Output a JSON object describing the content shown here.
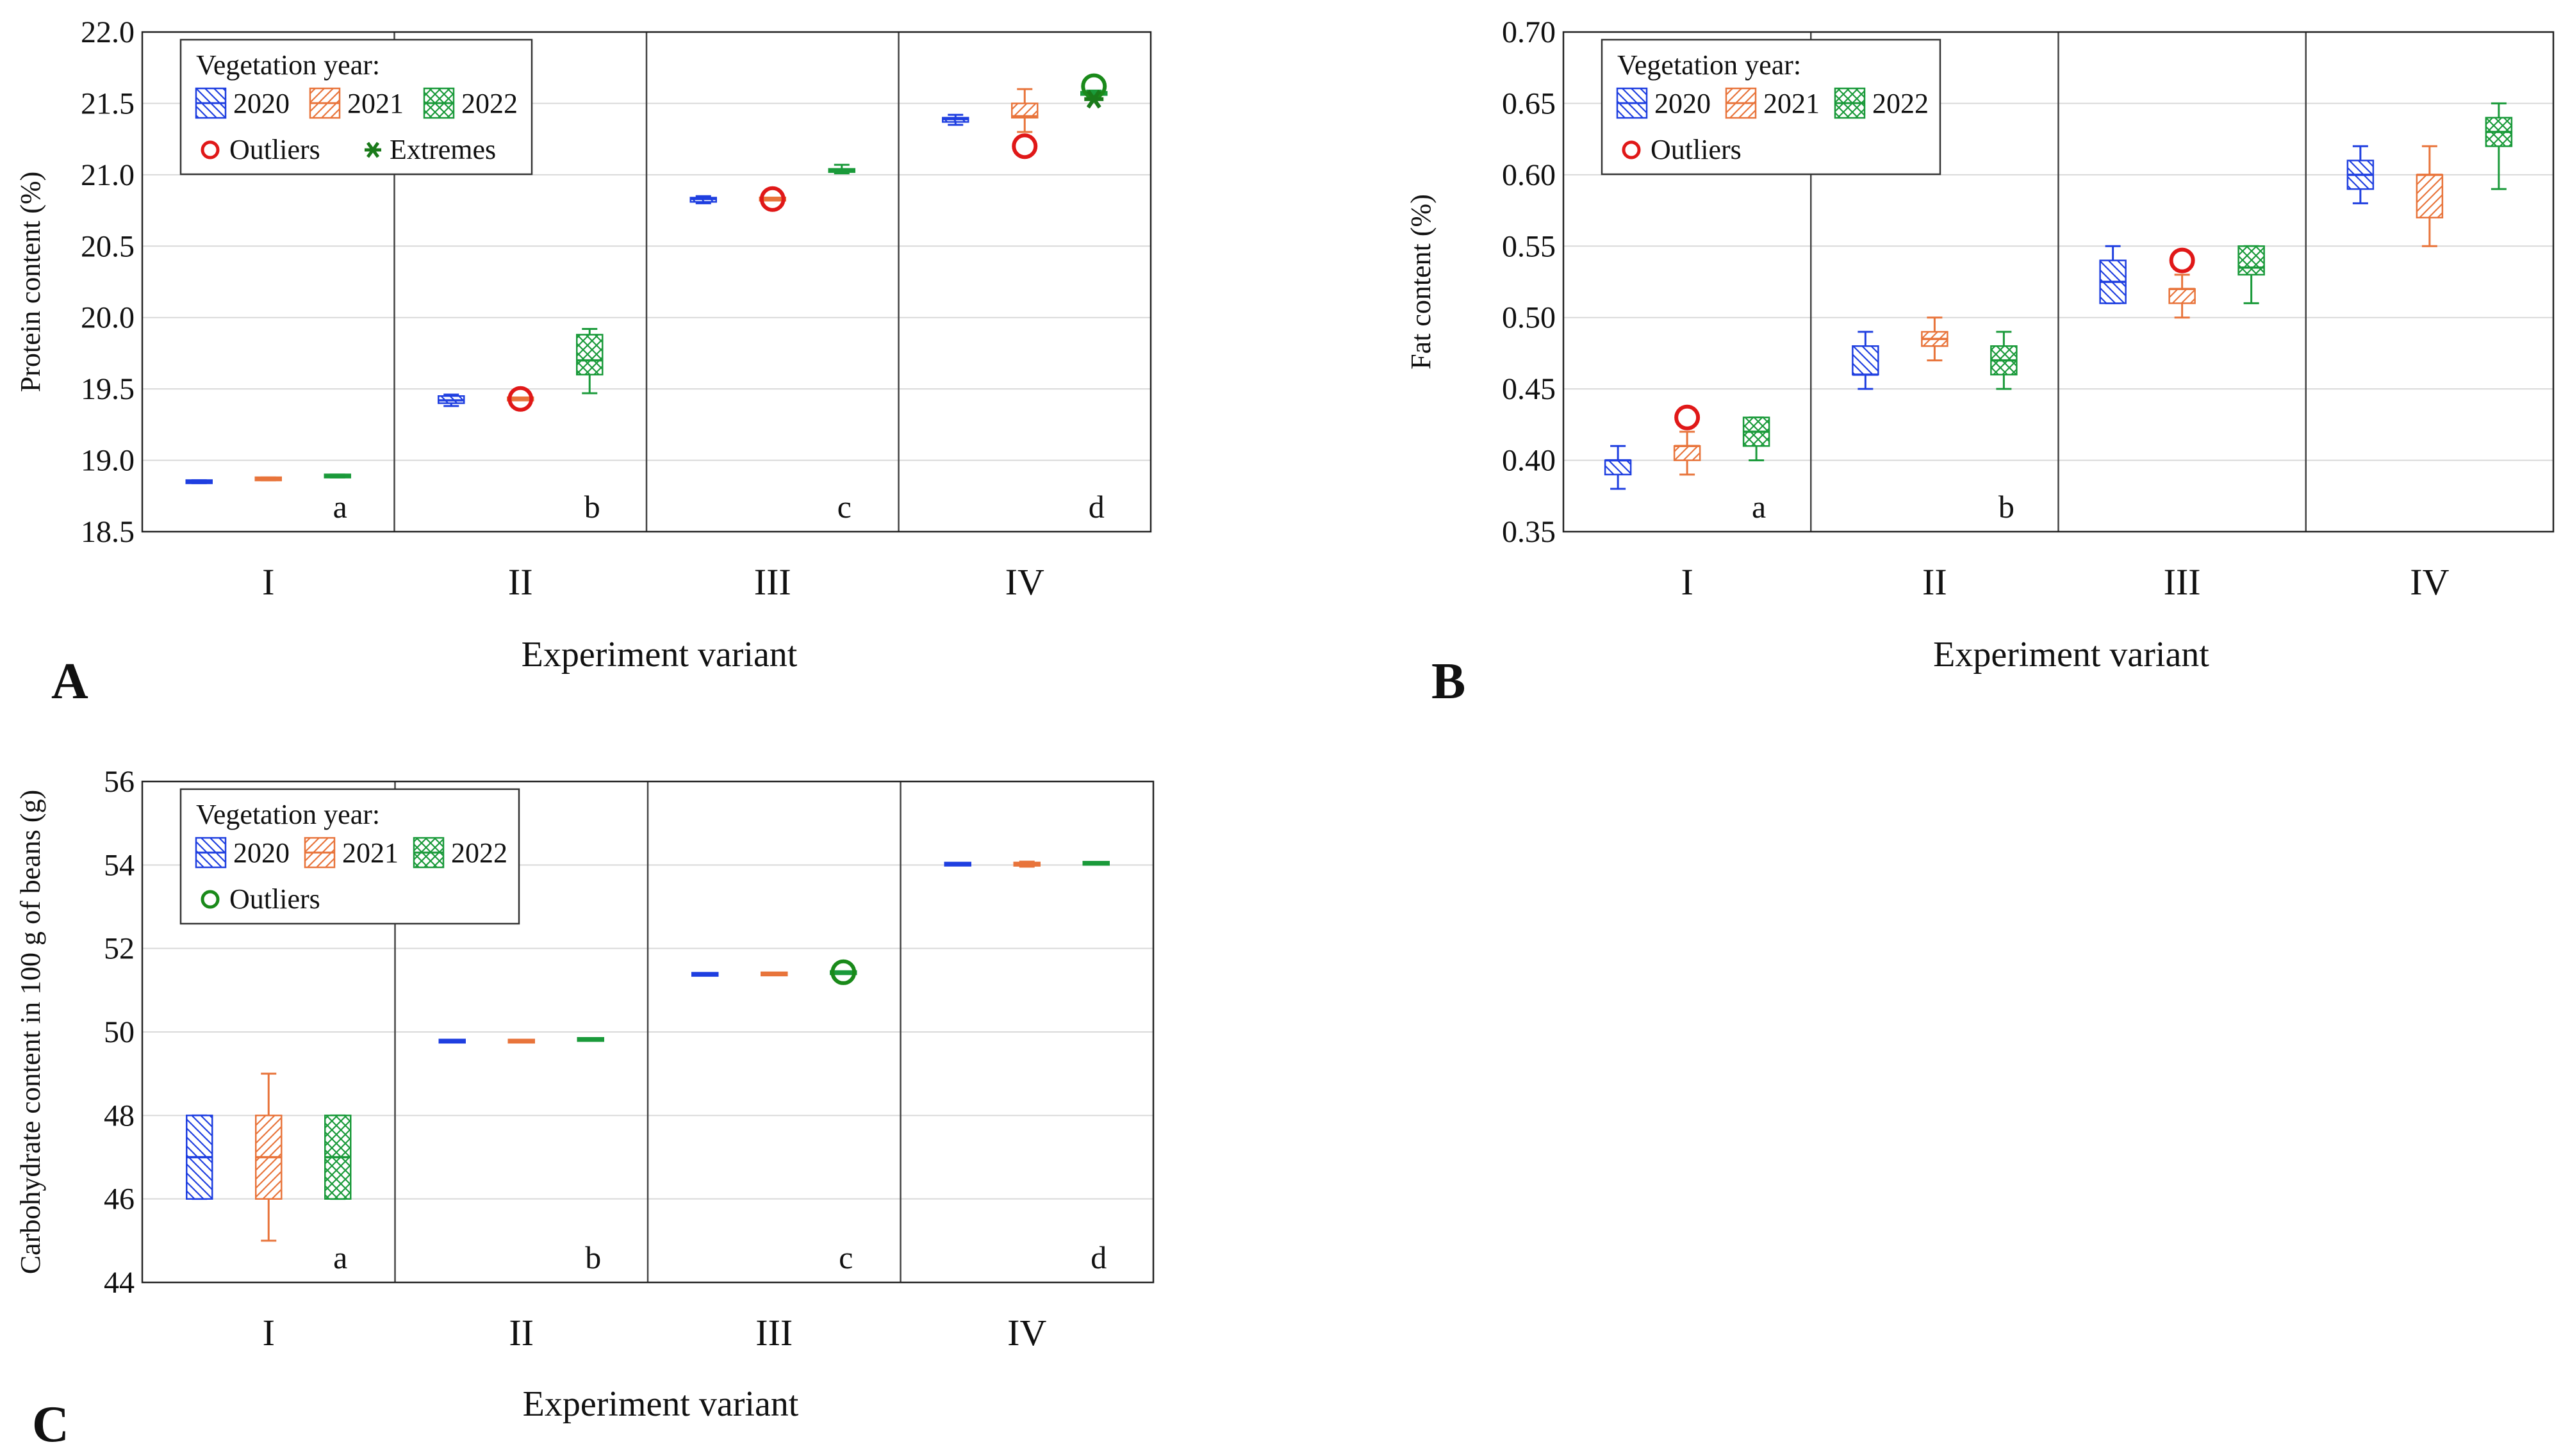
{
  "colors": {
    "2020": "#1f3fe0",
    "2021": "#e8743b",
    "2022": "#1a9a3a",
    "outlier": "#e01818",
    "outlier_2022": "#1a8a1a",
    "extreme": "#1a7a1a"
  },
  "chart_data": [
    {
      "panel": "A",
      "type": "box",
      "ylabel": "Protein content (%)",
      "xlabel": "Experiment variant",
      "ylim": [
        18.5,
        22.0
      ],
      "yticks": [
        "18.5",
        "19.0",
        "19.5",
        "20.0",
        "20.5",
        "21.0",
        "21.5",
        "22.0"
      ],
      "categories": [
        "I",
        "II",
        "III",
        "IV"
      ],
      "significance": [
        "a",
        "b",
        "c",
        "d"
      ],
      "legend": {
        "title": "Vegetation year:",
        "years": [
          "2020",
          "2021",
          "2022"
        ],
        "outliers_label": "Outliers",
        "extremes_label": "Extremes"
      },
      "series": [
        {
          "name": "2020",
          "boxes": [
            {
              "min": 18.84,
              "q1": 18.845,
              "median": 18.85,
              "q3": 18.855,
              "max": 18.86
            },
            {
              "min": 19.38,
              "q1": 19.4,
              "median": 19.42,
              "q3": 19.45,
              "max": 19.46
            },
            {
              "min": 20.8,
              "q1": 20.81,
              "median": 20.83,
              "q3": 20.84,
              "max": 20.85
            },
            {
              "min": 21.35,
              "q1": 21.37,
              "median": 21.39,
              "q3": 21.4,
              "max": 21.42
            }
          ]
        },
        {
          "name": "2021",
          "boxes": [
            {
              "min": 18.86,
              "q1": 18.865,
              "median": 18.87,
              "q3": 18.875,
              "max": 18.88
            },
            {
              "min": 19.42,
              "q1": 19.425,
              "median": 19.43,
              "q3": 19.435,
              "max": 19.44,
              "outliers": [
                19.43
              ]
            },
            {
              "min": 20.82,
              "q1": 20.825,
              "median": 20.83,
              "q3": 20.835,
              "max": 20.84,
              "outliers": [
                20.83
              ]
            },
            {
              "min": 21.3,
              "q1": 21.4,
              "median": 21.41,
              "q3": 21.5,
              "max": 21.6,
              "outliers": [
                21.2
              ]
            }
          ]
        },
        {
          "name": "2022",
          "boxes": [
            {
              "min": 18.88,
              "q1": 18.885,
              "median": 18.89,
              "q3": 18.895,
              "max": 18.9
            },
            {
              "min": 19.47,
              "q1": 19.6,
              "median": 19.7,
              "q3": 19.88,
              "max": 19.92
            },
            {
              "min": 21.01,
              "q1": 21.02,
              "median": 21.03,
              "q3": 21.04,
              "max": 21.07
            },
            {
              "min": 21.55,
              "q1": 21.56,
              "median": 21.57,
              "q3": 21.58,
              "max": 21.59,
              "outliers": [
                21.62
              ],
              "extremes": [
                21.53
              ]
            }
          ]
        }
      ]
    },
    {
      "panel": "B",
      "type": "box",
      "ylabel": "Fat content (%)",
      "xlabel": "Experiment variant",
      "ylim": [
        0.35,
        0.7
      ],
      "yticks": [
        "0.35",
        "0.40",
        "0.45",
        "0.50",
        "0.55",
        "0.60",
        "0.65",
        "0.70"
      ],
      "categories": [
        "I",
        "II",
        "III",
        "IV"
      ],
      "significance": [
        "a",
        "b",
        "",
        ""
      ],
      "legend": {
        "title": "Vegetation year:",
        "years": [
          "2020",
          "2021",
          "2022"
        ],
        "outliers_label": "Outliers"
      },
      "series": [
        {
          "name": "2020",
          "boxes": [
            {
              "min": 0.38,
              "q1": 0.39,
              "median": 0.4,
              "q3": 0.4,
              "max": 0.41
            },
            {
              "min": 0.45,
              "q1": 0.46,
              "median": 0.46,
              "q3": 0.48,
              "max": 0.49
            },
            {
              "min": 0.51,
              "q1": 0.51,
              "median": 0.525,
              "q3": 0.54,
              "max": 0.55
            },
            {
              "min": 0.58,
              "q1": 0.59,
              "median": 0.6,
              "q3": 0.61,
              "max": 0.62
            }
          ]
        },
        {
          "name": "2021",
          "boxes": [
            {
              "min": 0.39,
              "q1": 0.4,
              "median": 0.41,
              "q3": 0.41,
              "max": 0.42,
              "outliers": [
                0.43
              ]
            },
            {
              "min": 0.47,
              "q1": 0.48,
              "median": 0.485,
              "q3": 0.49,
              "max": 0.5
            },
            {
              "min": 0.5,
              "q1": 0.51,
              "median": 0.52,
              "q3": 0.52,
              "max": 0.53,
              "outliers": [
                0.54
              ]
            },
            {
              "min": 0.55,
              "q1": 0.57,
              "median": 0.6,
              "q3": 0.6,
              "max": 0.62
            }
          ]
        },
        {
          "name": "2022",
          "boxes": [
            {
              "min": 0.4,
              "q1": 0.41,
              "median": 0.42,
              "q3": 0.43,
              "max": 0.43
            },
            {
              "min": 0.45,
              "q1": 0.46,
              "median": 0.47,
              "q3": 0.48,
              "max": 0.49
            },
            {
              "min": 0.51,
              "q1": 0.53,
              "median": 0.535,
              "q3": 0.55,
              "max": 0.55
            },
            {
              "min": 0.59,
              "q1": 0.62,
              "median": 0.63,
              "q3": 0.64,
              "max": 0.65
            }
          ]
        }
      ]
    },
    {
      "panel": "C",
      "type": "box",
      "ylabel": "Carbohydrate content in 100 g of beans (g)",
      "xlabel": "Experiment variant",
      "ylim": [
        44,
        56
      ],
      "yticks": [
        "44",
        "46",
        "48",
        "50",
        "52",
        "54",
        "56"
      ],
      "categories": [
        "I",
        "II",
        "III",
        "IV"
      ],
      "significance": [
        "a",
        "b",
        "c",
        "d"
      ],
      "legend": {
        "title": "Vegetation year:",
        "years": [
          "2020",
          "2021",
          "2022"
        ],
        "outliers_label": "Outliers"
      },
      "series": [
        {
          "name": "2020",
          "boxes": [
            {
              "min": 46,
              "q1": 46,
              "median": 47,
              "q3": 48,
              "max": 48
            },
            {
              "min": 49.76,
              "q1": 49.77,
              "median": 49.78,
              "q3": 49.79,
              "max": 49.8
            },
            {
              "min": 51.36,
              "q1": 51.37,
              "median": 51.38,
              "q3": 51.39,
              "max": 51.4
            },
            {
              "min": 54.0,
              "q1": 54.01,
              "median": 54.02,
              "q3": 54.03,
              "max": 54.04
            }
          ]
        },
        {
          "name": "2021",
          "boxes": [
            {
              "min": 45,
              "q1": 46,
              "median": 47,
              "q3": 48,
              "max": 49
            },
            {
              "min": 49.76,
              "q1": 49.77,
              "median": 49.78,
              "q3": 49.79,
              "max": 49.8
            },
            {
              "min": 51.37,
              "q1": 51.38,
              "median": 51.39,
              "q3": 51.4,
              "max": 51.41
            },
            {
              "min": 53.96,
              "q1": 53.98,
              "median": 54.02,
              "q3": 54.06,
              "max": 54.08
            }
          ]
        },
        {
          "name": "2022",
          "boxes": [
            {
              "min": 46,
              "q1": 46,
              "median": 47,
              "q3": 48,
              "max": 48
            },
            {
              "min": 49.8,
              "q1": 49.81,
              "median": 49.82,
              "q3": 49.83,
              "max": 49.84
            },
            {
              "min": 51.4,
              "q1": 51.41,
              "median": 51.42,
              "q3": 51.43,
              "max": 51.44,
              "outliers": [
                51.43
              ]
            },
            {
              "min": 54.02,
              "q1": 54.03,
              "median": 54.04,
              "q3": 54.05,
              "max": 54.06
            }
          ]
        }
      ]
    }
  ]
}
